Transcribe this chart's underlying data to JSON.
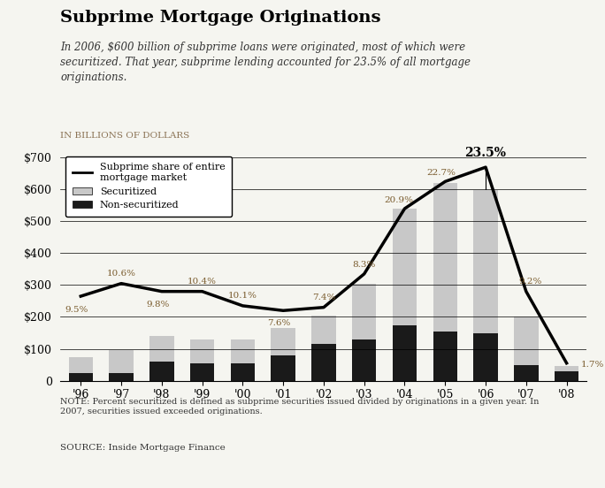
{
  "years": [
    "'96",
    "'97",
    "'98",
    "'99",
    "'00",
    "'01",
    "'02",
    "'03",
    "'04",
    "'05",
    "'06",
    "'07",
    "'08"
  ],
  "non_securitized": [
    25,
    25,
    60,
    55,
    55,
    80,
    115,
    130,
    175,
    155,
    150,
    50,
    30
  ],
  "securitized": [
    48,
    70,
    80,
    75,
    75,
    85,
    90,
    175,
    365,
    465,
    449,
    150,
    15
  ],
  "line_values": [
    265,
    305,
    280,
    280,
    235,
    220,
    230,
    335,
    540,
    625,
    670,
    280,
    55
  ],
  "percentages": [
    "9.5%",
    "10.6%",
    "9.8%",
    "10.4%",
    "10.1%",
    "7.6%",
    "7.4%",
    "8.3%",
    "20.9%",
    "22.7%",
    "23.5%",
    "9.2%",
    "1.7%"
  ],
  "peak_label": "23.5%",
  "peak_year_idx": 10,
  "title": "Subprime Mortgage Originations",
  "subtitle": "In 2006, $600 billion of subprime loans were originated, most of which were\nsecuritized. That year, subprime lending accounted for 23.5% of all mortgage\noriginations.",
  "axis_label": "IN BILLIONS OF DOLLARS",
  "yticks": [
    0,
    100,
    200,
    300,
    400,
    500,
    600,
    700
  ],
  "ylabel_prefix": "$",
  "note": "NOTE: Percent securitized is defined as subprime securities issued divided by originations in a given year. In\n2007, securities issued exceeded originations.",
  "source": "SOURCE: Inside Mortgage Finance",
  "legend_line": "Subprime share of entire\nmortgage market",
  "legend_sec": "Securitized",
  "legend_nonsec": "Non-securitized",
  "bar_securitized_color": "#c8c8c8",
  "bar_nonsec_color": "#1a1a1a",
  "line_color": "#000000",
  "bg_color": "#f5f5f0",
  "text_color_pct": "#7a5c2e",
  "pct_peak_color": "#000000"
}
